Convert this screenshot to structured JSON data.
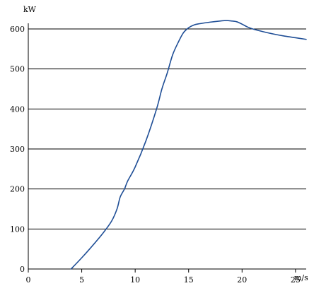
{
  "chart_data": {
    "type": "line",
    "title": "",
    "xlabel": "m/s",
    "ylabel": "kW",
    "xlim": [
      0,
      26
    ],
    "ylim": [
      0,
      600
    ],
    "x_ticks": [
      0,
      5,
      10,
      15,
      20,
      25
    ],
    "y_ticks": [
      0,
      100,
      200,
      300,
      400,
      500,
      600
    ],
    "grid": "horizontal",
    "legend": "none",
    "series": [
      {
        "color": "#1f4e96",
        "x": [
          4,
          5,
          6,
          7,
          7.8,
          8.3,
          8.6,
          9,
          9.3,
          10,
          11,
          12,
          12.5,
          13,
          13.5,
          14,
          14.5,
          15,
          15.5,
          16,
          17,
          18,
          18.5,
          19,
          19.5,
          20,
          20.5,
          21,
          22,
          23,
          24,
          25,
          26
        ],
        "y": [
          0,
          28,
          58,
          90,
          120,
          150,
          180,
          200,
          220,
          255,
          320,
          400,
          450,
          490,
          535,
          565,
          590,
          603,
          610,
          613,
          617,
          620,
          621,
          620,
          618,
          612,
          605,
          600,
          593,
          587,
          582,
          578,
          574
        ]
      }
    ]
  }
}
